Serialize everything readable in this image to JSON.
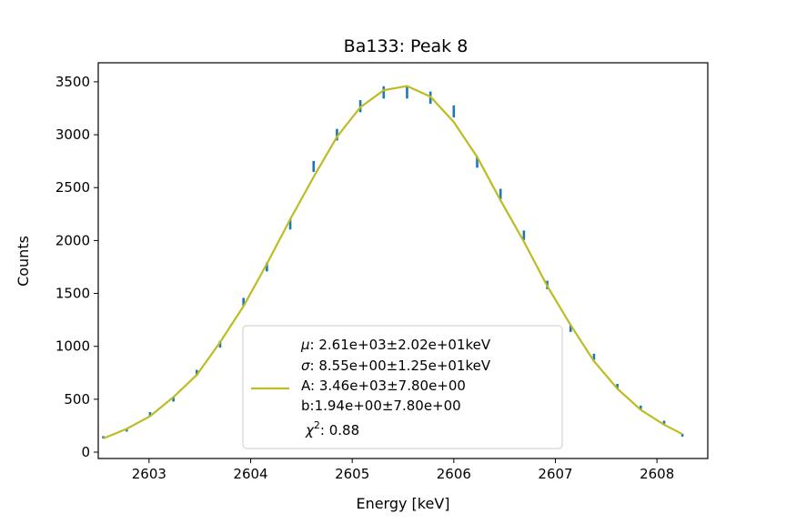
{
  "chart_data": {
    "type": "scatter",
    "title": "Ba133: Peak 8",
    "xlabel": "Energy [keV]",
    "ylabel": "Counts",
    "xlim": [
      2602.5,
      2608.5
    ],
    "ylim": [
      -60,
      3680
    ],
    "xticks": [
      2603,
      2604,
      2605,
      2606,
      2607,
      2608
    ],
    "yticks": [
      0,
      500,
      1000,
      1500,
      2000,
      2500,
      3000,
      3500
    ],
    "grid": false,
    "legend_position": "lower-center",
    "colors": {
      "data": "#1f77b4",
      "fit": "#bcbd22"
    },
    "series": [
      {
        "kind": "errorbar",
        "x": [
          2602.55,
          2602.78,
          2603.01,
          2603.24,
          2603.47,
          2603.7,
          2603.93,
          2604.16,
          2604.39,
          2604.62,
          2604.85,
          2605.08,
          2605.31,
          2605.54,
          2605.77,
          2606.0,
          2606.23,
          2606.46,
          2606.69,
          2606.92,
          2607.15,
          2607.38,
          2607.61,
          2607.84,
          2608.07,
          2608.25
        ],
        "y": [
          140,
          210,
          360,
          500,
          750,
          1020,
          1420,
          1750,
          2150,
          2700,
          3000,
          3270,
          3400,
          3400,
          3350,
          3220,
          2740,
          2440,
          2050,
          1580,
          1170,
          900,
          620,
          420,
          280,
          160
        ],
        "yerr": [
          12,
          15,
          19,
          22,
          27,
          32,
          38,
          42,
          46,
          52,
          55,
          57,
          58,
          58,
          58,
          57,
          52,
          49,
          45,
          40,
          34,
          30,
          25,
          20,
          17,
          13
        ]
      },
      {
        "kind": "line",
        "x": [
          2602.55,
          2602.78,
          2603.01,
          2603.24,
          2603.47,
          2603.7,
          2603.93,
          2604.16,
          2604.39,
          2604.62,
          2604.85,
          2605.08,
          2605.31,
          2605.54,
          2605.77,
          2606.0,
          2606.23,
          2606.46,
          2606.69,
          2606.92,
          2607.15,
          2607.38,
          2607.61,
          2607.84,
          2608.07,
          2608.25
        ],
        "y": [
          130,
          220,
          340,
          520,
          730,
          1040,
          1380,
          1780,
          2200,
          2600,
          2980,
          3260,
          3420,
          3460,
          3360,
          3120,
          2790,
          2380,
          1990,
          1570,
          1200,
          860,
          600,
          400,
          260,
          170
        ]
      }
    ],
    "legend": {
      "lines": [
        {
          "math": "μ",
          "text": ": 2.61e+03±2.02e+01keV"
        },
        {
          "math": "σ",
          "text": ": 8.55e+00±1.25e+01keV"
        },
        {
          "math": "",
          "text": "A: 3.46e+03±7.80e+00"
        },
        {
          "math": "",
          "text": "b:1.94e+00±7.80e+00"
        },
        {
          "math": "χ",
          "sup": "2",
          "text": ": 0.88"
        }
      ]
    }
  }
}
